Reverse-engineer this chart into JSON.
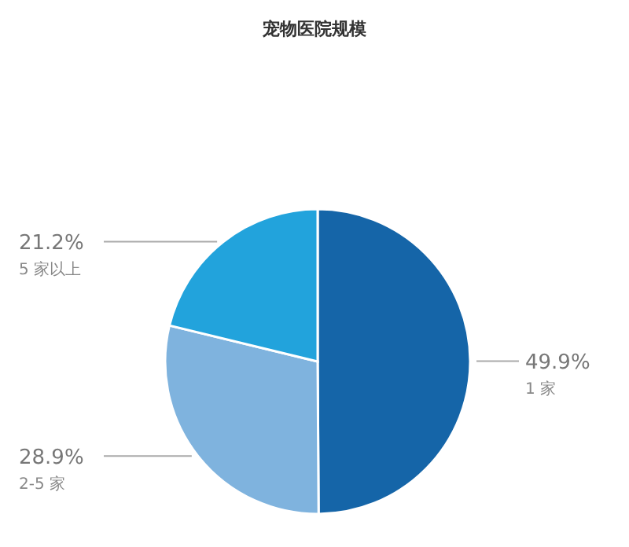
{
  "chart_data": {
    "type": "pie",
    "title": "宠物医院规模",
    "categories": [
      "1 家",
      "2-5 家",
      "5 家以上"
    ],
    "values": [
      49.9,
      28.9,
      21.2
    ],
    "value_labels": [
      "49.9%",
      "28.9%",
      "21.2%"
    ],
    "colors": [
      "#1565a8",
      "#7fb3de",
      "#22a3dc"
    ]
  }
}
